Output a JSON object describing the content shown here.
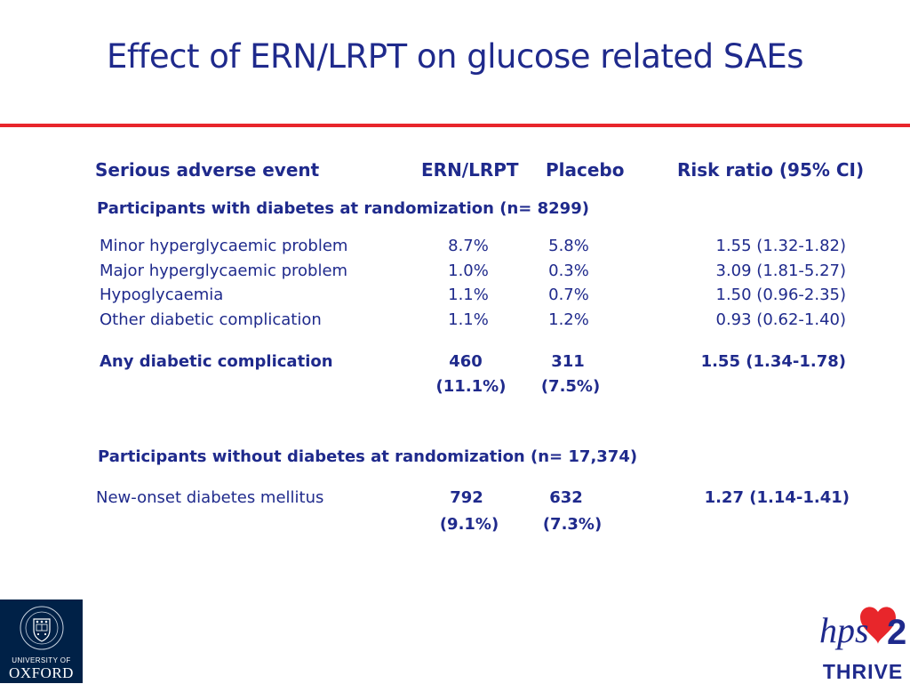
{
  "slide": {
    "title": "Effect of ERN/LRPT on glucose related SAEs"
  },
  "table": {
    "headers": {
      "event": "Serious adverse event",
      "ern": "ERN/LRPT",
      "placebo": "Placebo",
      "rr": "Risk ratio (95% CI)"
    },
    "section1": {
      "title": "Participants with diabetes at randomization (n= 8299)",
      "rows": [
        {
          "event": "Minor hyperglycaemic problem",
          "ern": "8.7%",
          "placebo": "5.8%",
          "rr": "1.55 (1.32-1.82)"
        },
        {
          "event": "Major hyperglycaemic problem",
          "ern": "1.0%",
          "placebo": "0.3%",
          "rr": "3.09 (1.81-5.27)"
        },
        {
          "event": "Hypoglycaemia",
          "ern": "1.1%",
          "placebo": "0.7%",
          "rr": "1.50 (0.96-2.35)"
        },
        {
          "event": "Other diabetic complication",
          "ern": "1.1%",
          "placebo": "1.2%",
          "rr": "0.93 (0.62-1.40)"
        }
      ],
      "total": {
        "event": "Any diabetic complication",
        "ern": "460",
        "ern_pct": "(11.1%)",
        "placebo": "311",
        "placebo_pct": "(7.5%)",
        "rr": "1.55 (1.34-1.78)"
      }
    },
    "section2": {
      "title": "Participants without diabetes at randomization (n= 17,374)",
      "row": {
        "event": "New-onset diabetes mellitus",
        "ern": "792",
        "ern_pct": "(9.1%)",
        "placebo": "632",
        "placebo_pct": "(7.3%)",
        "rr": "1.27 (1.14-1.41)"
      }
    }
  },
  "logos": {
    "oxford_line1": "UNIVERSITY OF",
    "oxford_line2": "OXFORD",
    "hps_mark": "hps2",
    "thrive": "THRIVE"
  },
  "colors": {
    "text": "#1f2a8c",
    "accent_rule": "#e8262b",
    "oxford_blue": "#002147",
    "heart_red": "#e8262b"
  }
}
